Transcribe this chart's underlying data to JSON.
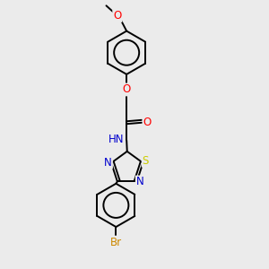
{
  "background_color": "#ebebeb",
  "bond_color": "#000000",
  "atom_colors": {
    "O": "#ff0000",
    "N": "#0000cd",
    "S": "#cccc00",
    "Br": "#cc8800",
    "C": "#000000"
  },
  "figsize": [
    3.0,
    3.0
  ],
  "dpi": 100,
  "lw": 1.4,
  "fontsize": 8.5
}
